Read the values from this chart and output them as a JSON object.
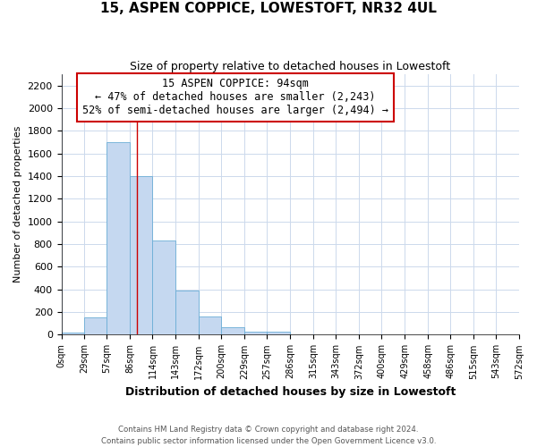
{
  "title": "15, ASPEN COPPICE, LOWESTOFT, NR32 4UL",
  "subtitle": "Size of property relative to detached houses in Lowestoft",
  "xlabel": "Distribution of detached houses by size in Lowestoft",
  "ylabel": "Number of detached properties",
  "bar_color": "#c5d8f0",
  "bar_edge_color": "#6baed6",
  "grid_color": "#ccd9ec",
  "property_line_color": "#cc0000",
  "bin_labels": [
    "0sqm",
    "29sqm",
    "57sqm",
    "86sqm",
    "114sqm",
    "143sqm",
    "172sqm",
    "200sqm",
    "229sqm",
    "257sqm",
    "286sqm",
    "315sqm",
    "343sqm",
    "372sqm",
    "400sqm",
    "429sqm",
    "458sqm",
    "486sqm",
    "515sqm",
    "543sqm",
    "572sqm"
  ],
  "bin_edges": [
    0,
    29,
    57,
    86,
    114,
    143,
    172,
    200,
    229,
    257,
    286,
    315,
    343,
    372,
    400,
    429,
    458,
    486,
    515,
    543,
    572
  ],
  "counts": [
    20,
    155,
    1700,
    1400,
    830,
    390,
    165,
    65,
    30,
    25,
    0,
    0,
    0,
    0,
    0,
    0,
    0,
    0,
    0,
    0
  ],
  "property_size": 94,
  "annotation_line1": "15 ASPEN COPPICE: 94sqm",
  "annotation_line2": "← 47% of detached houses are smaller (2,243)",
  "annotation_line3": "52% of semi-detached houses are larger (2,494) →",
  "ylim": [
    0,
    2300
  ],
  "yticks": [
    0,
    200,
    400,
    600,
    800,
    1000,
    1200,
    1400,
    1600,
    1800,
    2000,
    2200
  ],
  "footer_line1": "Contains HM Land Registry data © Crown copyright and database right 2024.",
  "footer_line2": "Contains public sector information licensed under the Open Government Licence v3.0."
}
